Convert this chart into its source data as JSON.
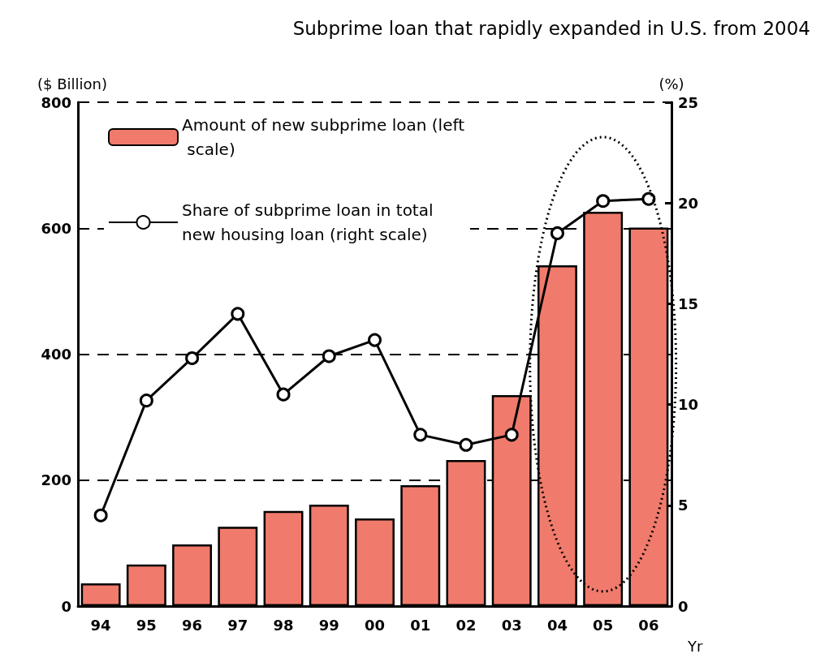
{
  "chart_data": {
    "type": "bar",
    "title": "Subprime loan that rapidly expanded in U.S. from 2004",
    "ylabel": "($ Billion)",
    "y2label": "(%)",
    "xlabel": "Yr",
    "categories": [
      "94",
      "95",
      "96",
      "97",
      "98",
      "99",
      "00",
      "01",
      "02",
      "03",
      "04",
      "05",
      "06"
    ],
    "series": [
      {
        "name": "Amount of new subprime loan (left scale)",
        "color": "#f07b6c",
        "values": [
          36,
          66,
          98,
          126,
          151,
          161,
          139,
          192,
          232,
          335,
          541,
          626,
          601
        ]
      },
      {
        "name": "Share of subprime loan in total new housing loan (right scale)",
        "type": "line",
        "axis": "y2",
        "color": "#000000",
        "marker": "circle",
        "values": [
          4.5,
          10.2,
          12.3,
          14.5,
          10.5,
          12.4,
          13.2,
          8.5,
          8.0,
          8.5,
          18.5,
          20.1,
          20.2
        ]
      }
    ],
    "ylim": [
      0,
      800
    ],
    "yticks": [
      0,
      200,
      400,
      600,
      800
    ],
    "y2lim": [
      0,
      25
    ],
    "y2ticks": [
      0,
      5,
      10,
      15,
      20,
      25
    ],
    "grid": "y",
    "legend": "top left"
  }
}
